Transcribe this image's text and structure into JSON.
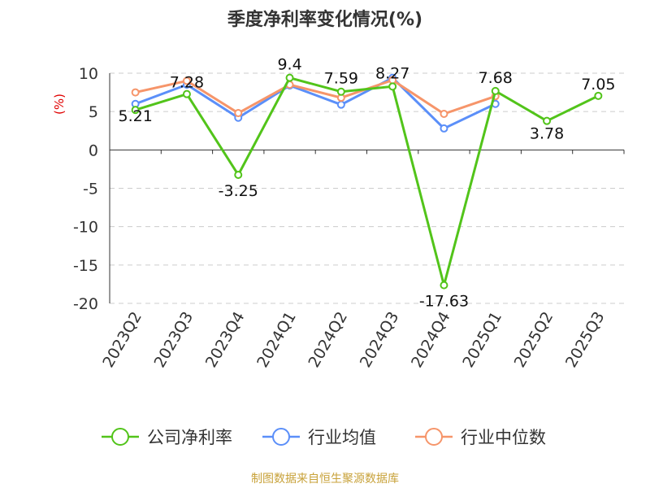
{
  "chart_data": {
    "type": "line",
    "title": "季度净利率变化情况(%)",
    "ylabel": "(%)",
    "ylim": [
      -20,
      10
    ],
    "yticks": [
      10,
      5,
      0,
      -5,
      -10,
      -15,
      -20
    ],
    "categories": [
      "2023Q2",
      "2023Q3",
      "2023Q4",
      "2024Q1",
      "2024Q2",
      "2024Q3",
      "2024Q4",
      "2025Q1",
      "2025Q2",
      "2025Q3"
    ],
    "series": [
      {
        "name": "公司净利率",
        "color": "#52c41a",
        "values": [
          5.21,
          7.28,
          -3.25,
          9.4,
          7.59,
          8.27,
          -17.63,
          7.68,
          3.78,
          7.05
        ],
        "labels": [
          "5.21",
          "7.28",
          "-3.25",
          "9.4",
          "7.59",
          "8.27",
          "-17.63",
          "7.68",
          "3.78",
          "7.05"
        ]
      },
      {
        "name": "行业均值",
        "color": "#5b8ff9",
        "values": [
          6.0,
          8.5,
          4.2,
          8.4,
          5.9,
          9.4,
          2.8,
          6.0,
          null,
          null
        ]
      },
      {
        "name": "行业中位数",
        "color": "#f6956a",
        "values": [
          7.5,
          9.0,
          4.8,
          8.5,
          6.8,
          9.1,
          4.7,
          7.0,
          null,
          null
        ]
      }
    ],
    "grid": "horizontal-dashed",
    "legend": "bottom"
  },
  "footer": "制图数据来自恒生聚源数据库"
}
